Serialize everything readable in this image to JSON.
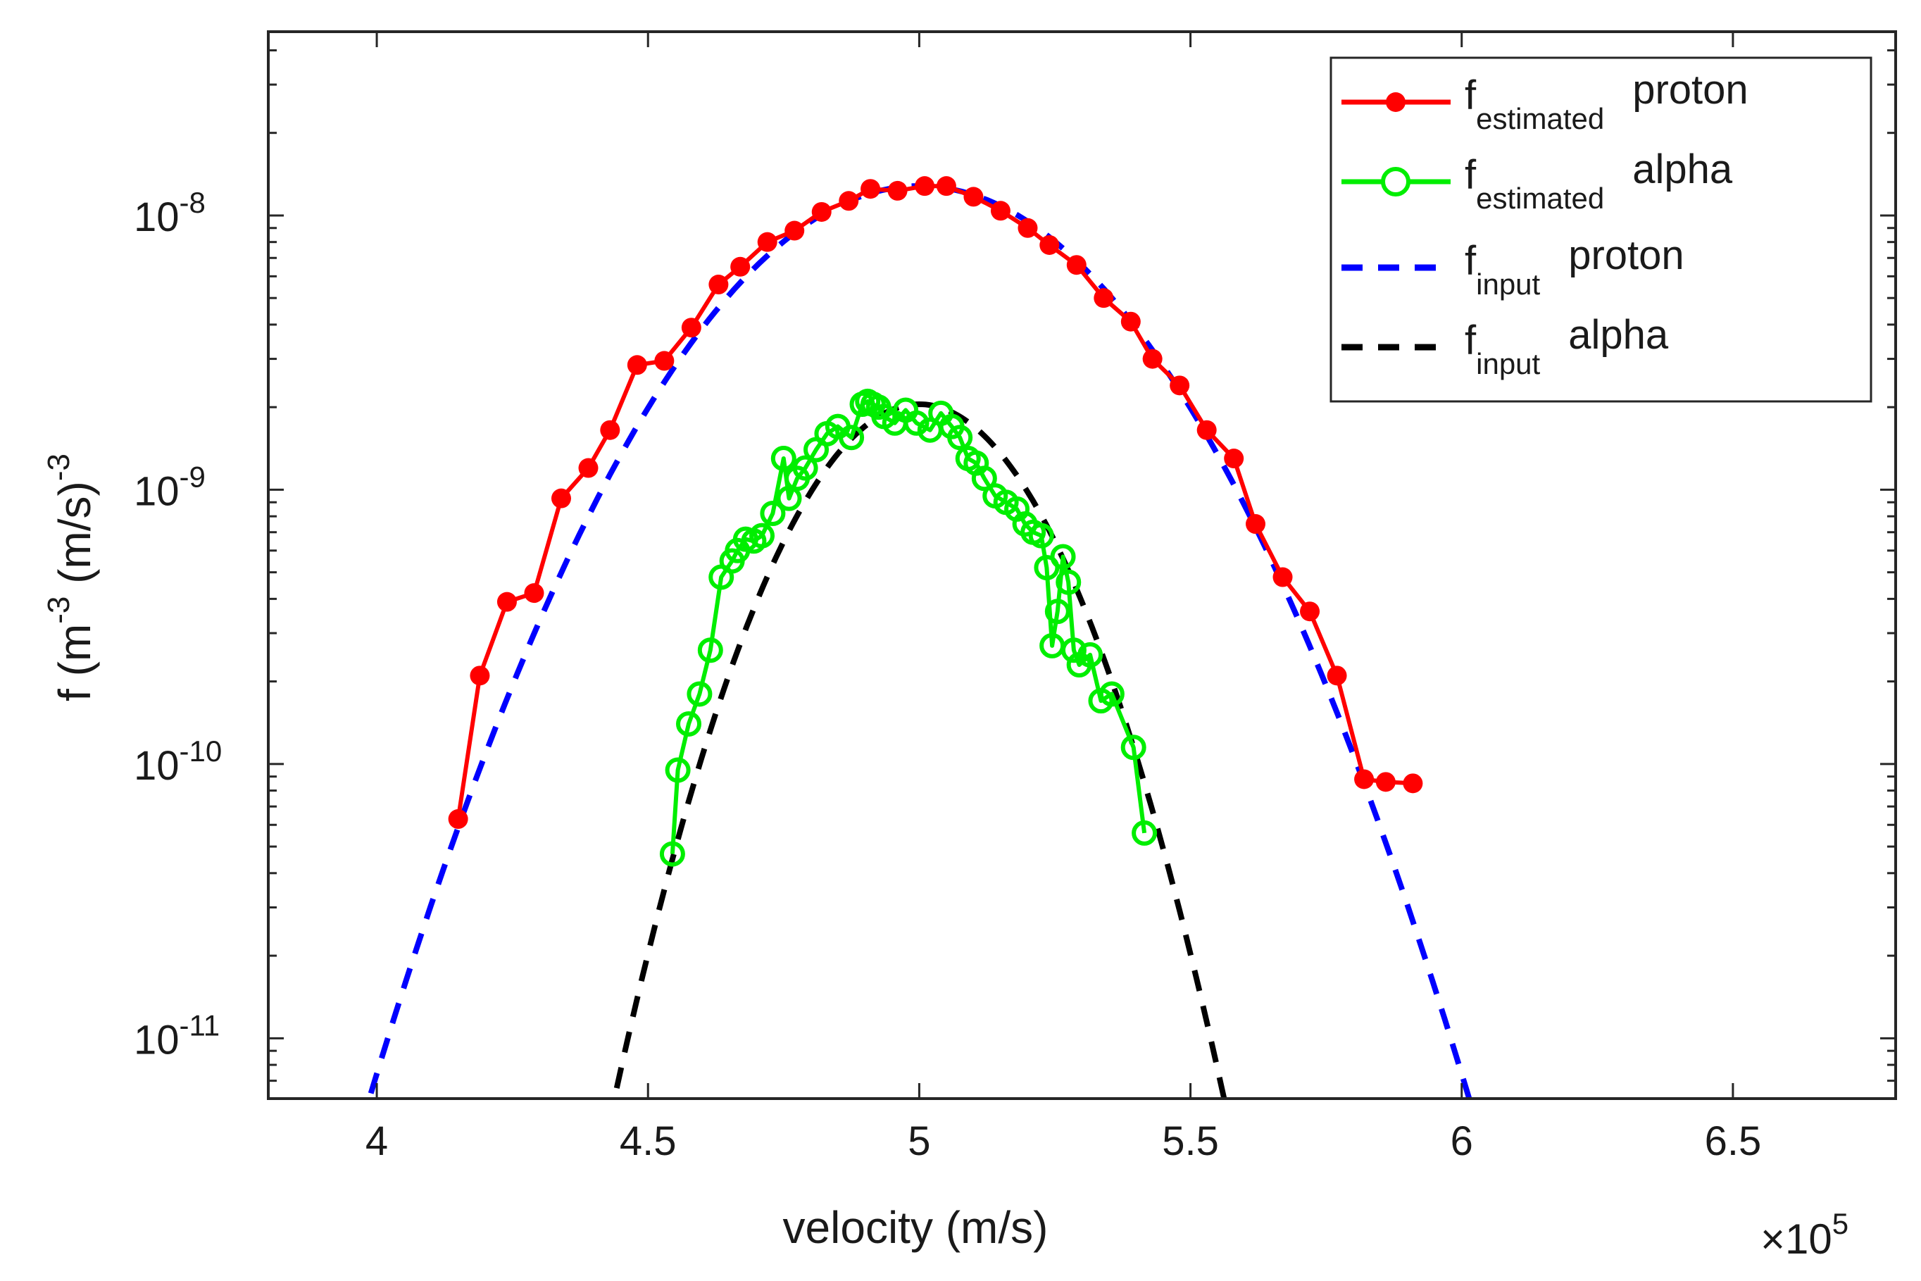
{
  "chart_data": {
    "type": "line",
    "title": "",
    "xlabel": "velocity (m/s)",
    "x_exponent_label": "×10",
    "x_exponent_power": "5",
    "ylabel_parts": [
      "f (m",
      "-3",
      " (m/s)",
      "-3"
    ],
    "yscale": "log",
    "xlim": [
      3.8,
      6.8
    ],
    "ylim_log10": [
      -11.22,
      -7.33
    ],
    "x_ticks": [
      {
        "value": 4,
        "label": "4"
      },
      {
        "value": 4.5,
        "label": "4.5"
      },
      {
        "value": 5,
        "label": "5"
      },
      {
        "value": 5.5,
        "label": "5.5"
      },
      {
        "value": 6,
        "label": "6"
      },
      {
        "value": 6.5,
        "label": "6.5"
      }
    ],
    "y_ticks": [
      {
        "log10": -8,
        "base": "10",
        "exp": "-8"
      },
      {
        "log10": -9,
        "base": "10",
        "exp": "-9"
      },
      {
        "log10": -10,
        "base": "10",
        "exp": "-10"
      },
      {
        "log10": -11,
        "base": "10",
        "exp": "-11"
      }
    ],
    "series": [
      {
        "name": "f_estimated proton",
        "legend_main": "f",
        "legend_sub": "estimated",
        "legend_suffix": "proton",
        "color": "#ff0000",
        "style": "solid-dot",
        "x": [
          4.15,
          4.19,
          4.24,
          4.29,
          4.34,
          4.39,
          4.43,
          4.48,
          4.53,
          4.58,
          4.63,
          4.67,
          4.72,
          4.77,
          4.82,
          4.87,
          4.91,
          4.96,
          5.01,
          5.05,
          5.1,
          5.15,
          5.2,
          5.24,
          5.29,
          5.34,
          5.39,
          5.43,
          5.48,
          5.53,
          5.58,
          5.62,
          5.67,
          5.72,
          5.77,
          5.82,
          5.86,
          5.91
        ],
        "y": [
          6.3e-11,
          2.1e-10,
          3.9e-10,
          4.2e-10,
          9.3e-10,
          1.2e-09,
          1.65e-09,
          2.85e-09,
          2.95e-09,
          3.9e-09,
          5.6e-09,
          6.5e-09,
          8e-09,
          8.8e-09,
          1.03e-08,
          1.13e-08,
          1.25e-08,
          1.23e-08,
          1.28e-08,
          1.28e-08,
          1.17e-08,
          1.04e-08,
          9e-09,
          7.8e-09,
          6.6e-09,
          5e-09,
          4.1e-09,
          3e-09,
          2.4e-09,
          1.65e-09,
          1.3e-09,
          7.5e-10,
          4.8e-10,
          3.6e-10,
          2.1e-10,
          8.8e-11,
          8.6e-11,
          8.5e-11
        ]
      },
      {
        "name": "f_estimated alpha",
        "legend_main": "f",
        "legend_sub": "estimated",
        "legend_suffix": "alpha",
        "color": "#00ee00",
        "style": "solid-circle",
        "x": [
          4.545,
          4.555,
          4.575,
          4.595,
          4.615,
          4.635,
          4.655,
          4.665,
          4.68,
          4.695,
          4.71,
          4.73,
          4.75,
          4.76,
          4.775,
          4.79,
          4.81,
          4.83,
          4.85,
          4.875,
          4.895,
          4.905,
          4.915,
          4.925,
          4.935,
          4.955,
          4.975,
          4.995,
          5.02,
          5.04,
          5.06,
          5.075,
          5.09,
          5.105,
          5.12,
          5.14,
          5.16,
          5.18,
          5.195,
          5.21,
          5.225,
          5.235,
          5.245,
          5.255,
          5.265,
          5.275,
          5.285,
          5.295,
          5.315,
          5.335,
          5.355,
          5.395,
          5.415
        ],
        "y": [
          4.7e-11,
          9.5e-11,
          1.4e-10,
          1.8e-10,
          2.6e-10,
          4.8e-10,
          5.5e-10,
          6e-10,
          6.6e-10,
          6.5e-10,
          6.8e-10,
          8.2e-10,
          1.3e-09,
          9.3e-10,
          1.1e-09,
          1.2e-09,
          1.4e-09,
          1.6e-09,
          1.7e-09,
          1.55e-09,
          2.05e-09,
          2.1e-09,
          2.05e-09,
          2e-09,
          1.85e-09,
          1.75e-09,
          1.95e-09,
          1.75e-09,
          1.65e-09,
          1.9e-09,
          1.7e-09,
          1.55e-09,
          1.3e-09,
          1.25e-09,
          1.1e-09,
          9.5e-10,
          9e-10,
          8.5e-10,
          7.5e-10,
          7e-10,
          6.8e-10,
          5.2e-10,
          2.7e-10,
          3.6e-10,
          5.7e-10,
          4.6e-10,
          2.6e-10,
          2.3e-10,
          2.5e-10,
          1.7e-10,
          1.8e-10,
          1.15e-10,
          5.6e-11
        ]
      },
      {
        "name": "f_input proton",
        "legend_main": "f",
        "legend_sub": "input",
        "legend_suffix": "proton",
        "color": "#0000ff",
        "style": "dashed",
        "gaussian": {
          "peak": 1.28e-08,
          "center": 5.0,
          "sigma": 0.259,
          "x_range": [
            3.86,
            6.14
          ]
        }
      },
      {
        "name": "f_input alpha",
        "legend_main": "f",
        "legend_sub": "input",
        "legend_suffix": "alpha",
        "color": "#000000",
        "style": "dashed",
        "gaussian": {
          "peak": 2.05e-09,
          "center": 5.0,
          "sigma": 0.1646,
          "x_range": [
            4.4,
            5.6
          ]
        }
      }
    ],
    "legend_position": "top-right",
    "grid": false
  }
}
